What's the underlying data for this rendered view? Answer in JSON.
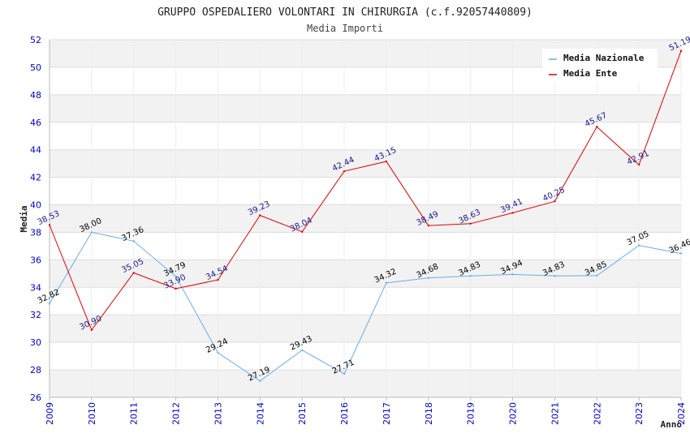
{
  "title": "GRUPPO OSPEDALIERO VOLONTARI IN CHIRURGIA (c.f.92057440809)",
  "subtitle": "Media Importi",
  "chart_data": {
    "type": "line",
    "title": "GRUPPO OSPEDALIERO VOLONTARI IN CHIRURGIA (c.f.92057440809)",
    "subtitle": "Media Importi",
    "xlabel": "Anno",
    "ylabel": "Media",
    "x": [
      2009,
      2010,
      2011,
      2012,
      2013,
      2014,
      2015,
      2016,
      2017,
      2018,
      2019,
      2020,
      2021,
      2022,
      2023,
      2024
    ],
    "ylim": [
      26,
      52
    ],
    "yticks": [
      26,
      28,
      30,
      32,
      34,
      36,
      38,
      40,
      42,
      44,
      46,
      48,
      50,
      52
    ],
    "grid": true,
    "legend_position": "top-right",
    "series": [
      {
        "name": "Media Nazionale",
        "color": "#6aaee8",
        "label_color": "#000000",
        "values": [
          32.82,
          38.0,
          37.36,
          34.79,
          29.24,
          27.19,
          29.43,
          27.71,
          34.32,
          34.68,
          34.83,
          34.94,
          34.83,
          34.85,
          37.05,
          36.46
        ],
        "labels": [
          "32.82",
          "38.00",
          "37.36",
          "34.79",
          "29.24",
          "27.19",
          "29.43",
          "27.71",
          "34.32",
          "34.68",
          "34.83",
          "34.94",
          "34.83",
          "34.85",
          "37.05",
          "36.46"
        ]
      },
      {
        "name": "Media Ente",
        "color": "#e00000",
        "label_color": "#1a1a8c",
        "values": [
          38.53,
          30.9,
          35.05,
          33.9,
          34.54,
          39.23,
          38.04,
          42.44,
          43.15,
          38.49,
          38.63,
          39.41,
          40.25,
          45.67,
          42.91,
          51.19
        ],
        "labels": [
          "38.53",
          "30.90",
          "35.05",
          "33.90",
          "34.54",
          "39.23",
          "38.04",
          "42.44",
          "43.15",
          "38.49",
          "38.63",
          "39.41",
          "40.25",
          "45.67",
          "42.91",
          "51.19"
        ]
      }
    ],
    "colors": {
      "tick_labels": "#0000cc",
      "grid_band": "#f2f2f2",
      "grid_line": "#dddddd",
      "axis": "#bbbbbb"
    }
  }
}
